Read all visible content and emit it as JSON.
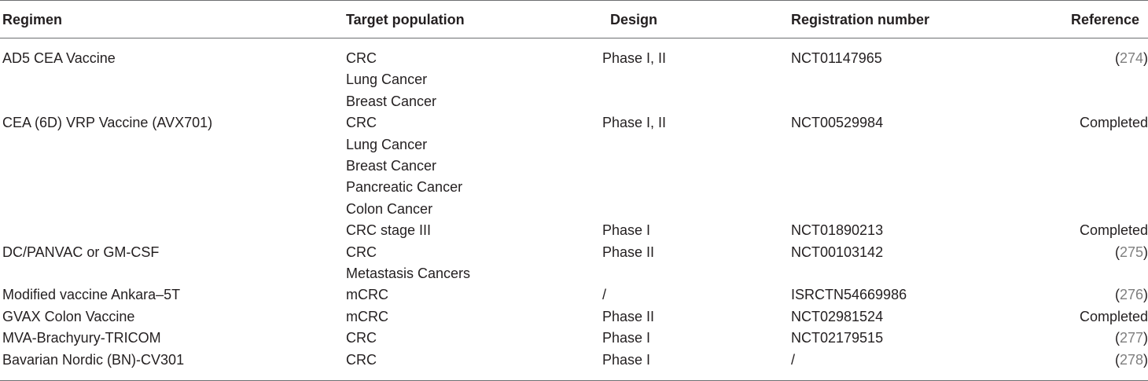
{
  "headers": {
    "regimen": "Regimen",
    "target": "Target population",
    "design": "Design",
    "registration": "Registration number",
    "reference": "Reference"
  },
  "rows": [
    {
      "regimen": "AD5 CEA Vaccine",
      "target": "CRC",
      "design": "Phase I, II",
      "registration": "NCT01147965",
      "reference": {
        "text": "274",
        "cite": true
      }
    },
    {
      "regimen": "",
      "target": "Lung Cancer",
      "design": "",
      "registration": "",
      "reference": {
        "text": "",
        "cite": false
      }
    },
    {
      "regimen": "",
      "target": "Breast Cancer",
      "design": "",
      "registration": "",
      "reference": {
        "text": "",
        "cite": false
      }
    },
    {
      "regimen": "CEA (6D) VRP Vaccine (AVX701)",
      "target": "CRC",
      "design": "Phase I, II",
      "registration": "NCT00529984",
      "reference": {
        "text": "Completed",
        "cite": false
      }
    },
    {
      "regimen": "",
      "target": "Lung Cancer",
      "design": "",
      "registration": "",
      "reference": {
        "text": "",
        "cite": false
      }
    },
    {
      "regimen": "",
      "target": "Breast Cancer",
      "design": "",
      "registration": "",
      "reference": {
        "text": "",
        "cite": false
      }
    },
    {
      "regimen": "",
      "target": "Pancreatic Cancer",
      "design": "",
      "registration": "",
      "reference": {
        "text": "",
        "cite": false
      }
    },
    {
      "regimen": "",
      "target": "Colon Cancer",
      "design": "",
      "registration": "",
      "reference": {
        "text": "",
        "cite": false
      }
    },
    {
      "regimen": "",
      "target": "CRC stage III",
      "design": "Phase I",
      "registration": "NCT01890213",
      "reference": {
        "text": "Completed",
        "cite": false
      }
    },
    {
      "regimen": "DC/PANVAC or GM-CSF",
      "target": "CRC",
      "design": "Phase II",
      "registration": "NCT00103142",
      "reference": {
        "text": "275",
        "cite": true
      }
    },
    {
      "regimen": "",
      "target": "Metastasis Cancers",
      "design": "",
      "registration": "",
      "reference": {
        "text": "",
        "cite": false
      }
    },
    {
      "regimen": "Modified vaccine Ankara–5T",
      "target": "mCRC",
      "design": "/",
      "registration": "ISRCTN54669986",
      "reference": {
        "text": "276",
        "cite": true
      }
    },
    {
      "regimen": "GVAX Colon Vaccine",
      "target": "mCRC",
      "design": "Phase II",
      "registration": "NCT02981524",
      "reference": {
        "text": "Completed",
        "cite": false
      }
    },
    {
      "regimen": "MVA-Brachyury-TRICOM",
      "target": "CRC",
      "design": "Phase I",
      "registration": "NCT02179515",
      "reference": {
        "text": "277",
        "cite": true
      }
    },
    {
      "regimen": "Bavarian Nordic (BN)-CV301",
      "target": "CRC",
      "design": "Phase I",
      "registration": "/",
      "reference": {
        "text": "278",
        "cite": true
      }
    }
  ]
}
